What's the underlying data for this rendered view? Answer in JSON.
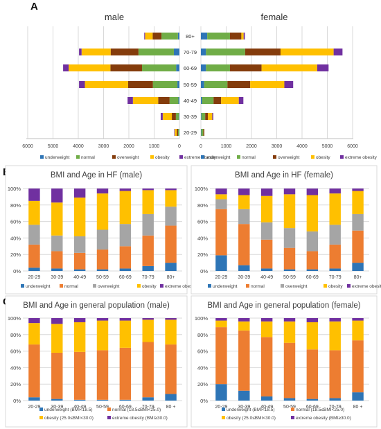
{
  "colors": {
    "underweight": "#2E75B6",
    "normal": "#70AD47",
    "overweight": "#843C0C",
    "obesity": "#FFC000",
    "extreme_obesity": "#7030A0",
    "normal_bc": "#ED7D31",
    "overweight_bc": "#A5A5A5"
  },
  "panels": {
    "A": "A",
    "B": "B",
    "C": "C"
  },
  "chart_data": [
    {
      "type": "bar",
      "panel": "A",
      "orientation": "horizontal-population-pyramid",
      "left_title": "male",
      "right_title": "female",
      "categories": [
        "80+",
        "70-79",
        "60-69",
        "50-59",
        "40-49",
        "30-39",
        "20-29"
      ],
      "axis_ticks_left": [
        "6000",
        "5000",
        "4000",
        "3000",
        "2000",
        "1000",
        "0"
      ],
      "axis_ticks_right": [
        "0",
        "1000",
        "2000",
        "3000",
        "4000",
        "5000",
        "6000"
      ],
      "xlim": [
        0,
        6000
      ],
      "legend": [
        "underweight",
        "normal",
        "overweight",
        "obesity",
        "extreme obesity"
      ],
      "male": [
        {
          "name": "underweight",
          "values": [
            60,
            220,
            130,
            80,
            40,
            20,
            15
          ]
        },
        {
          "name": "normal",
          "values": [
            650,
            1400,
            1350,
            970,
            350,
            120,
            40
          ]
        },
        {
          "name": "overweight",
          "values": [
            350,
            1100,
            1250,
            980,
            450,
            160,
            50
          ]
        },
        {
          "name": "obesity",
          "values": [
            300,
            1150,
            1650,
            1710,
            1000,
            360,
            80
          ]
        },
        {
          "name": "extreme obesity",
          "values": [
            30,
            100,
            220,
            230,
            210,
            80,
            20
          ]
        }
      ],
      "female": [
        {
          "name": "underweight",
          "values": [
            250,
            200,
            200,
            130,
            50,
            20,
            15
          ]
        },
        {
          "name": "normal",
          "values": [
            900,
            1550,
            950,
            920,
            450,
            150,
            80
          ]
        },
        {
          "name": "overweight",
          "values": [
            450,
            1400,
            1250,
            900,
            300,
            110,
            30
          ]
        },
        {
          "name": "obesity",
          "values": [
            90,
            2100,
            2200,
            1350,
            700,
            170,
            10
          ]
        },
        {
          "name": "extreme obesity",
          "values": [
            50,
            350,
            450,
            350,
            180,
            40,
            5
          ]
        }
      ]
    },
    {
      "type": "bar",
      "panel": "B",
      "stacked_percent": true,
      "title": "BMI and Age in HF (male)",
      "categories": [
        "20-29",
        "30-39",
        "40-49",
        "50-59",
        "60-69",
        "70-79",
        "80+"
      ],
      "ylim": [
        0,
        100
      ],
      "yticks": [
        "0%",
        "20%",
        "40%",
        "60%",
        "80%",
        "100%"
      ],
      "series": [
        {
          "name": "underweight",
          "values": [
            4,
            3,
            2,
            2,
            3,
            6,
            10
          ]
        },
        {
          "name": "normal",
          "values": [
            28,
            21,
            20,
            24,
            27,
            37,
            45
          ]
        },
        {
          "name": "overweight",
          "values": [
            24,
            19,
            20,
            24,
            27,
            26,
            23
          ]
        },
        {
          "name": "obesity",
          "values": [
            29,
            40,
            47,
            44,
            40,
            29,
            20
          ]
        },
        {
          "name": "extreme obesity",
          "values": [
            15,
            17,
            11,
            6,
            3,
            2,
            2
          ]
        }
      ]
    },
    {
      "type": "bar",
      "panel": "B",
      "stacked_percent": true,
      "title": "BMI and Age in HF (female)",
      "categories": [
        "20-29",
        "30-39",
        "40-49",
        "50-59",
        "60-69",
        "70-79",
        "80+"
      ],
      "ylim": [
        0,
        100
      ],
      "yticks": [
        "0%",
        "20%",
        "40%",
        "60%",
        "80%",
        "100%"
      ],
      "series": [
        {
          "name": "underweight",
          "values": [
            19,
            7,
            3,
            2,
            2,
            3,
            10
          ]
        },
        {
          "name": "normal",
          "values": [
            56,
            50,
            35,
            26,
            22,
            29,
            39
          ]
        },
        {
          "name": "overweight",
          "values": [
            12,
            18,
            21,
            24,
            24,
            24,
            20
          ]
        },
        {
          "name": "obesity",
          "values": [
            6,
            17,
            32,
            41,
            44,
            38,
            28
          ]
        },
        {
          "name": "extreme obesity",
          "values": [
            7,
            8,
            9,
            7,
            8,
            6,
            3
          ]
        }
      ]
    },
    {
      "type": "bar",
      "panel": "C",
      "stacked_percent": true,
      "title": "BMI and Age in general population (male)",
      "categories": [
        "20-29",
        "30-39",
        "40-49",
        "50-59",
        "60-69",
        "70-79",
        "80 +"
      ],
      "ylim": [
        0,
        100
      ],
      "yticks": [
        "0%",
        "20%",
        "40%",
        "60%",
        "80%",
        "100%"
      ],
      "series": [
        {
          "name": "underweight (BMI<18.5)",
          "values": [
            4,
            2,
            1,
            1,
            1,
            4,
            8
          ]
        },
        {
          "name": "normal (18.5≤BMI<25.0)",
          "values": [
            64,
            56,
            58,
            60,
            63,
            67,
            60
          ]
        },
        {
          "name": "obesity (25.0≤BMI<30.0)",
          "values": [
            26,
            35,
            36,
            36,
            33,
            27,
            30
          ]
        },
        {
          "name": "extreme obesity (BMI≥30.0)",
          "values": [
            6,
            7,
            5,
            3,
            3,
            2,
            2
          ]
        }
      ]
    },
    {
      "type": "bar",
      "panel": "C",
      "stacked_percent": true,
      "title": "BMI and Age in general population (female)",
      "categories": [
        "20-29",
        "30-39",
        "40-49",
        "50-59",
        "60-69",
        "70-79",
        "80 +"
      ],
      "ylim": [
        0,
        100
      ],
      "yticks": [
        "0%",
        "20%",
        "40%",
        "60%",
        "80%",
        "100%"
      ],
      "series": [
        {
          "name": "underweight (BMI<18.5)",
          "values": [
            20,
            12,
            5,
            3,
            2,
            3,
            10
          ]
        },
        {
          "name": "normal (18.5≤BMI<25.0)",
          "values": [
            69,
            73,
            72,
            67,
            60,
            58,
            63
          ]
        },
        {
          "name": "obesity (25.0≤BMI<30.0)",
          "values": [
            8,
            11,
            19,
            26,
            33,
            35,
            24
          ]
        },
        {
          "name": "extreme obesity (BMI≥30.0)",
          "values": [
            3,
            4,
            4,
            4,
            5,
            4,
            3
          ]
        }
      ]
    }
  ]
}
